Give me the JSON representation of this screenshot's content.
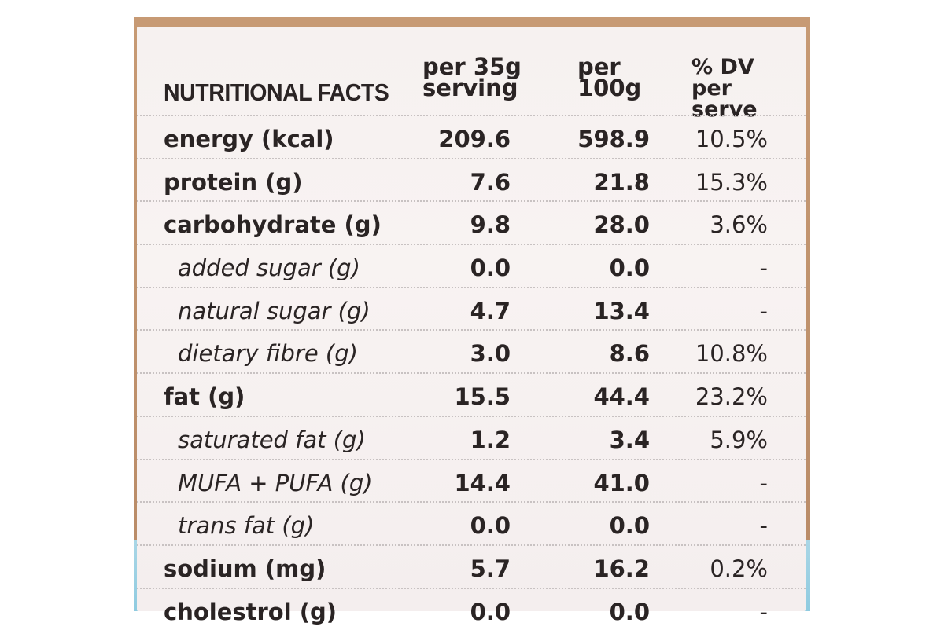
{
  "table": {
    "title": "NUTRITIONAL FACTS",
    "col1": "per 35g serving",
    "col2": "per 100g",
    "col3": "% DV per serve",
    "rows": [
      {
        "name": "energy (kcal)",
        "per35": "209.6",
        "per100": "598.9",
        "dv": "10.5%"
      },
      {
        "name": "protein (g)",
        "per35": "7.6",
        "per100": "21.8",
        "dv": "15.3%"
      },
      {
        "name": "carbohydrate (g)",
        "per35": "9.8",
        "per100": "28.0",
        "dv": "3.6%"
      },
      {
        "name": "added sugar (g)",
        "per35": "0.0",
        "per100": "0.0",
        "dv": "-"
      },
      {
        "name": "natural sugar (g)",
        "per35": "4.7",
        "per100": "13.4",
        "dv": "-"
      },
      {
        "name": "dietary fibre (g)",
        "per35": "3.0",
        "per100": "8.6",
        "dv": "10.8%"
      },
      {
        "name": "fat (g)",
        "per35": "15.5",
        "per100": "44.4",
        "dv": "23.2%"
      },
      {
        "name": "saturated fat (g)",
        "per35": "1.2",
        "per100": "3.4",
        "dv": "5.9%"
      },
      {
        "name": "MUFA + PUFA (g)",
        "per35": "14.4",
        "per100": "41.0",
        "dv": "-"
      },
      {
        "name": "trans fat (g)",
        "per35": "0.0",
        "per100": "0.0",
        "dv": "-"
      },
      {
        "name": "sodium (mg)",
        "per35": "5.7",
        "per100": "16.2",
        "dv": "0.2%"
      },
      {
        "name": "cholestrol (g)",
        "per35": "0.0",
        "per100": "0.0",
        "dv": "-"
      }
    ]
  }
}
